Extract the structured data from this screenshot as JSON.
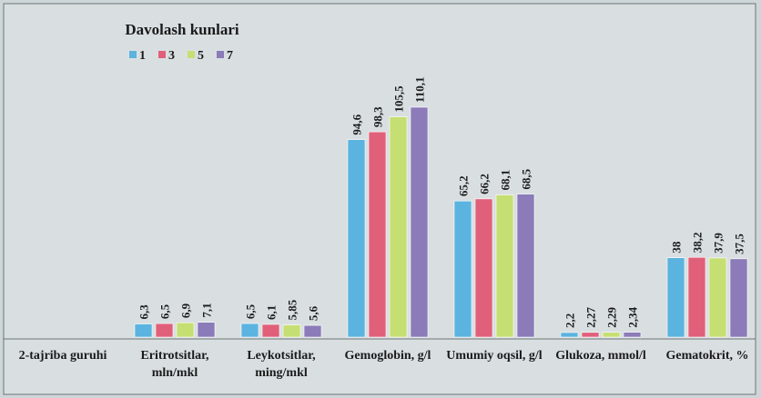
{
  "chart_data": {
    "type": "bar",
    "group_label": "2-tajriba guruhi",
    "legend_title": "Davolash kunlari",
    "legend_position": "top-left",
    "categories": [
      "Eritrotsitlar, mln/mkl",
      "Leykotsitlar, ming/mkl",
      "Gemoglobin, g/l",
      "Umumiy oqsil, g/l",
      "Glukoza, mmol/l",
      "Gematokrit, %"
    ],
    "series": [
      {
        "name": "1",
        "color": "#5bb3df",
        "values": [
          6.3,
          6.5,
          94.6,
          65.2,
          2.2,
          38
        ],
        "value_labels": [
          "6,3",
          "6,5",
          "94,6",
          "65,2",
          "2,2",
          "38"
        ]
      },
      {
        "name": "3",
        "color": "#e0607a",
        "values": [
          6.5,
          6.1,
          98.3,
          66.2,
          2.27,
          38.2
        ],
        "value_labels": [
          "6,5",
          "6,1",
          "98,3",
          "66,2",
          "2,27",
          "38,2"
        ]
      },
      {
        "name": "5",
        "color": "#c6df72",
        "values": [
          6.9,
          5.85,
          105.5,
          68.1,
          2.29,
          37.9
        ],
        "value_labels": [
          "6,9",
          "5,85",
          "105,5",
          "68,1",
          "2,29",
          "37,9"
        ]
      },
      {
        "name": "7",
        "color": "#8b7bb8",
        "values": [
          7.1,
          5.6,
          110.1,
          68.5,
          2.34,
          37.5
        ],
        "value_labels": [
          "7,1",
          "5,6",
          "110,1",
          "68,5",
          "2,34",
          "37,5"
        ]
      }
    ]
  }
}
